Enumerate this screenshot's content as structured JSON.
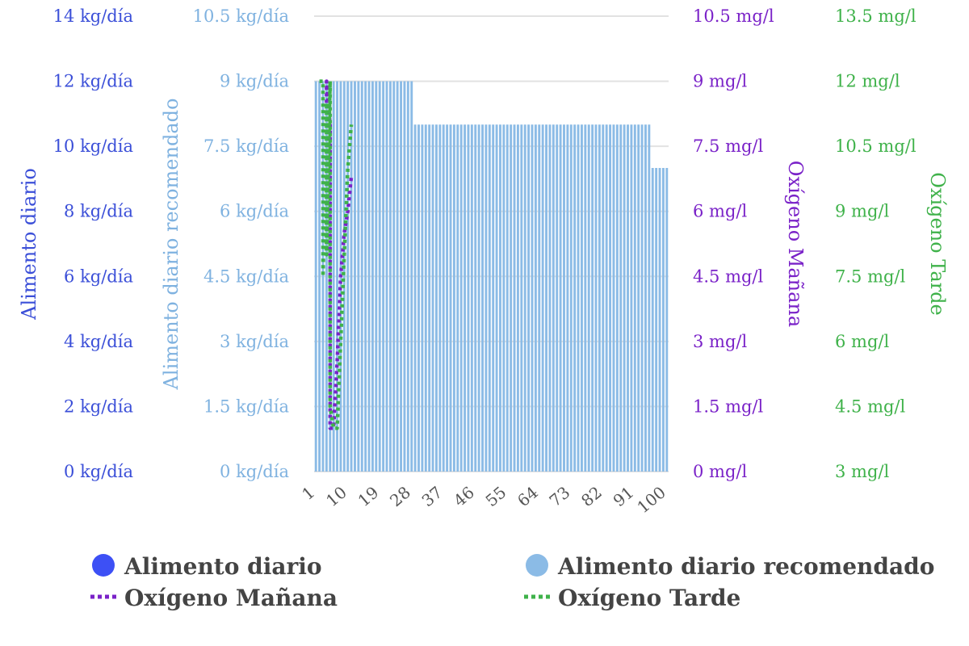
{
  "chart_data": {
    "type": "bar",
    "x_tick_labels": [
      "1",
      "10",
      "19",
      "28",
      "37",
      "46",
      "55",
      "64",
      "73",
      "82",
      "91",
      "100"
    ],
    "x_range": [
      1,
      100
    ],
    "grid": true,
    "legend_position": "bottom",
    "axes": [
      {
        "id": "y1",
        "title": "Alimento diario",
        "side": "left",
        "range": [
          0,
          14
        ],
        "ticks": [
          "0 kg/día",
          "2 kg/día",
          "4 kg/día",
          "6 kg/día",
          "8 kg/día",
          "10 kg/día",
          "12 kg/día",
          "14 kg/día"
        ],
        "color": "#3b4fd8"
      },
      {
        "id": "y2",
        "title": "Alimento diario recomendado",
        "side": "left",
        "range": [
          0,
          10.5
        ],
        "ticks": [
          "0 kg/día",
          "1.5 kg/día",
          "3 kg/día",
          "4.5 kg/día",
          "6 kg/día",
          "7.5 kg/día",
          "9 kg/día",
          "10.5 kg/día"
        ],
        "color": "#7fb2e0"
      },
      {
        "id": "y3",
        "title": "Oxígeno Mañana",
        "side": "right",
        "range": [
          0,
          10.5
        ],
        "ticks": [
          "0 mg/l",
          "1.5 mg/l",
          "3 mg/l",
          "4.5 mg/l",
          "6 mg/l",
          "7.5 mg/l",
          "9 mg/l",
          "10.5 mg/l"
        ],
        "color": "#7a22c8"
      },
      {
        "id": "y4",
        "title": "Oxígeno Tarde",
        "side": "right",
        "range": [
          3,
          13.5
        ],
        "ticks": [
          "3 mg/l",
          "4.5 mg/l",
          "6 mg/l",
          "7.5 mg/l",
          "9 mg/l",
          "10.5 mg/l",
          "12 mg/l",
          "13.5 mg/l"
        ],
        "color": "#3fb24a"
      }
    ],
    "series": [
      {
        "name": "Alimento diario",
        "type": "bar",
        "axis": "y1",
        "color": "#3d50f5",
        "legend_marker": "circle",
        "x": [],
        "values": []
      },
      {
        "name": "Alimento diario recomendado",
        "type": "bar",
        "axis": "y2",
        "color": "#8bbbe6",
        "legend_marker": "circle",
        "segments": [
          {
            "x_from": 1,
            "x_to": 28,
            "value": 9
          },
          {
            "x_from": 29,
            "x_to": 95,
            "value": 8
          },
          {
            "x_from": 96,
            "x_to": 100,
            "value": 7
          }
        ]
      },
      {
        "name": "Oxígeno Mañana",
        "type": "line",
        "style": "dotted",
        "axis": "y3",
        "color": "#7a22c8",
        "legend_marker": "dotted-line",
        "x": [
          4,
          4,
          5,
          5,
          6,
          7,
          8,
          9,
          10,
          11
        ],
        "values": [
          8.5,
          9.0,
          8.0,
          1.0,
          1.0,
          2.5,
          4.5,
          5.5,
          6.0,
          6.8
        ]
      },
      {
        "name": "Oxígeno Tarde",
        "type": "line",
        "style": "dotted",
        "axis": "y4",
        "color": "#3fb24a",
        "legend_marker": "dotted-line",
        "x": [
          2,
          3,
          3,
          4,
          4,
          5,
          5,
          6,
          7,
          8,
          9,
          10,
          11
        ],
        "values": [
          12.0,
          12.0,
          7.5,
          11.5,
          8.0,
          12.0,
          4.5,
          4.0,
          4.0,
          6.0,
          8.0,
          10.0,
          11.0
        ]
      }
    ]
  }
}
